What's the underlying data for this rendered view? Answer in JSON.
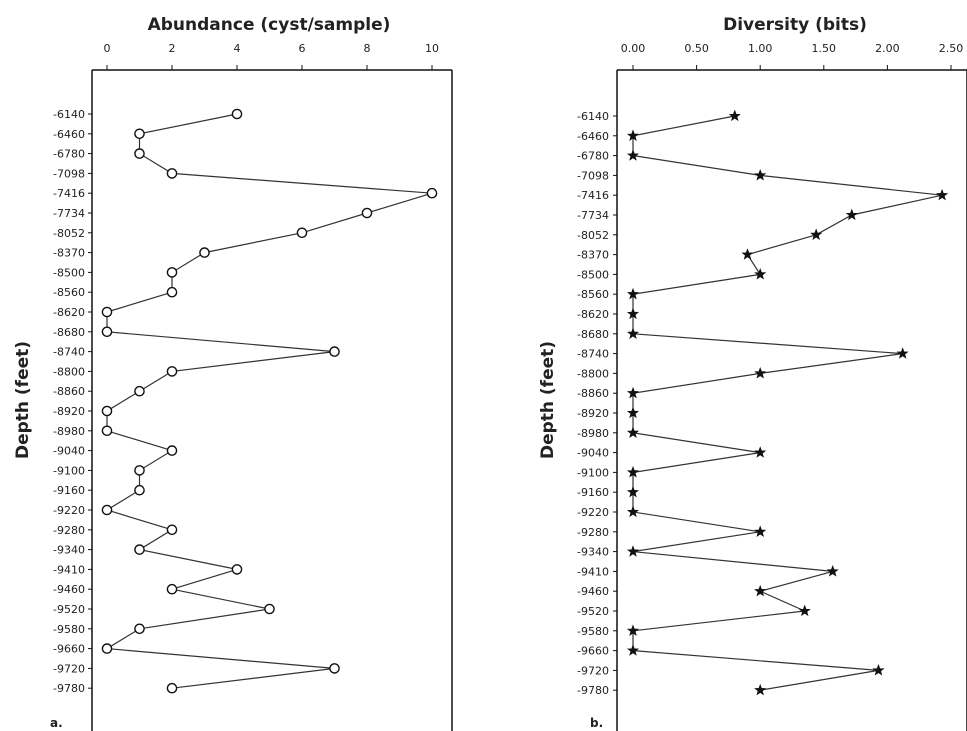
{
  "chart_data": [
    {
      "type": "line",
      "panel_label": "a.",
      "title": "Abundance (cyst/sample)",
      "xlabel": "Abundance (cyst/sample)",
      "ylabel": "Depth (feet)",
      "xlim": [
        0,
        10
      ],
      "xticks": [
        "0",
        "2",
        "4",
        "6",
        "8",
        "10"
      ],
      "xtick_values": [
        0,
        2,
        4,
        6,
        8,
        10
      ],
      "x_axis_position": "top",
      "marker": "open-circle",
      "depths": [
        "-6140",
        "-6460",
        "-6780",
        "-7098",
        "-7416",
        "-7734",
        "-8052",
        "-8370",
        "-8500",
        "-8560",
        "-8620",
        "-8680",
        "-8740",
        "-8800",
        "-8860",
        "-8920",
        "-8980",
        "-9040",
        "-9100",
        "-9160",
        "-9220",
        "-9280",
        "-9340",
        "-9410",
        "-9460",
        "-9520",
        "-9580",
        "-9660",
        "-9720",
        "-9780"
      ],
      "values": [
        4,
        1,
        1,
        2,
        10,
        8,
        6,
        3,
        2,
        2,
        0,
        0,
        7,
        2,
        1,
        0,
        0,
        2,
        1,
        1,
        0,
        2,
        1,
        4,
        2,
        5,
        1,
        0,
        7,
        2
      ]
    },
    {
      "type": "line",
      "panel_label": "b.",
      "title": "Diversity (bits)",
      "xlabel": "Diversity (bits)",
      "ylabel": "Depth (feet)",
      "xlim": [
        0,
        2.5
      ],
      "xticks": [
        "0.00",
        "0.50",
        "1.00",
        "1.50",
        "2.00",
        "2.50"
      ],
      "xtick_values": [
        0,
        0.5,
        1.0,
        1.5,
        2.0,
        2.5
      ],
      "x_axis_position": "top",
      "marker": "star",
      "depths": [
        "-6140",
        "-6460",
        "-6780",
        "-7098",
        "-7416",
        "-7734",
        "-8052",
        "-8370",
        "-8500",
        "-8560",
        "-8620",
        "-8680",
        "-8740",
        "-8800",
        "-8860",
        "-8920",
        "-8980",
        "-9040",
        "-9100",
        "-9160",
        "-9220",
        "-9280",
        "-9340",
        "-9410",
        "-9460",
        "-9520",
        "-9580",
        "-9660",
        "-9720",
        "-9780"
      ],
      "values": [
        0.8,
        0,
        0,
        1.0,
        2.43,
        1.72,
        1.44,
        0.9,
        1.0,
        0,
        0,
        0,
        2.12,
        1.0,
        0,
        0,
        0,
        1.0,
        0,
        0,
        0,
        1.0,
        0,
        1.57,
        1.0,
        1.35,
        0,
        0,
        1.93,
        1.0
      ]
    }
  ]
}
